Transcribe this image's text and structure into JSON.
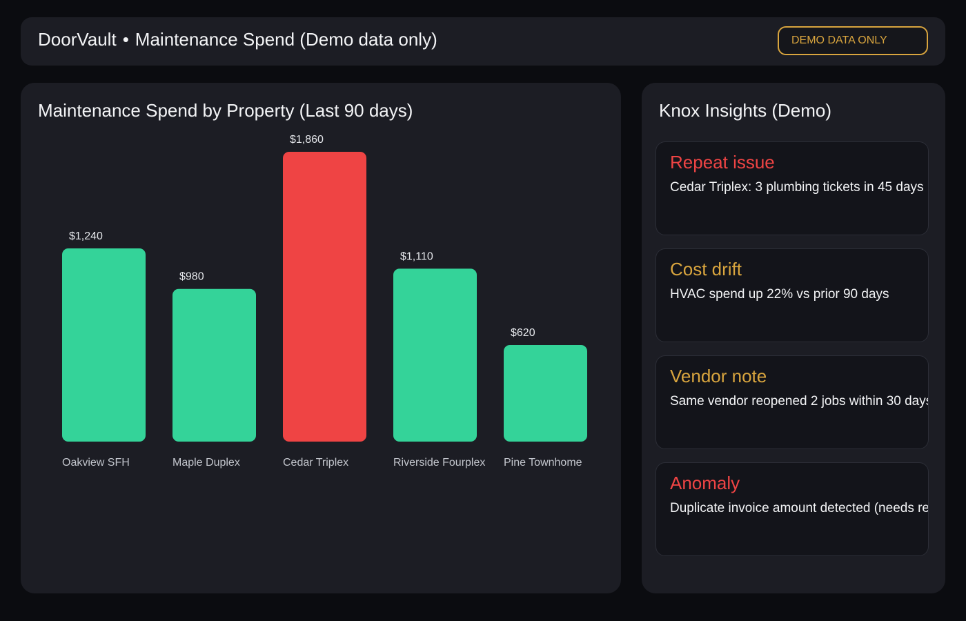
{
  "header": {
    "app_name": "DoorVault",
    "separator": "•",
    "page_title": "Maintenance Spend (Demo data only)",
    "badge": "DEMO DATA ONLY"
  },
  "colors": {
    "normal_bar": "#34d399",
    "highlight_bar": "#ef4444",
    "badge": "#d9a53e",
    "alert": "#ef4444",
    "warning": "#d9a53e"
  },
  "chart_data": {
    "type": "bar",
    "title": "Maintenance Spend by Property (Last 90 days)",
    "categories": [
      "Oakview SFH",
      "Maple Duplex",
      "Cedar Triplex",
      "Riverside Fourplex",
      "Pine Townhome"
    ],
    "values": [
      1240,
      980,
      1860,
      1110,
      620
    ],
    "value_labels": [
      "$1,240",
      "$980",
      "$1,860",
      "$1,110",
      "$620"
    ],
    "highlight": [
      false,
      false,
      true,
      false,
      false
    ],
    "ylim": [
      0,
      1860
    ],
    "grid": false
  },
  "insights": {
    "title": "Knox Insights (Demo)",
    "cards": [
      {
        "title": "Repeat issue",
        "text": "Cedar Triplex: 3 plumbing tickets in 45 days",
        "severity": "alert"
      },
      {
        "title": "Cost drift",
        "text": "HVAC spend up 22% vs prior 90 days",
        "severity": "warning"
      },
      {
        "title": "Vendor note",
        "text": "Same vendor reopened 2 jobs within 30 days",
        "severity": "warning"
      },
      {
        "title": "Anomaly",
        "text": "Duplicate invoice amount detected (needs review)",
        "severity": "alert"
      }
    ]
  }
}
